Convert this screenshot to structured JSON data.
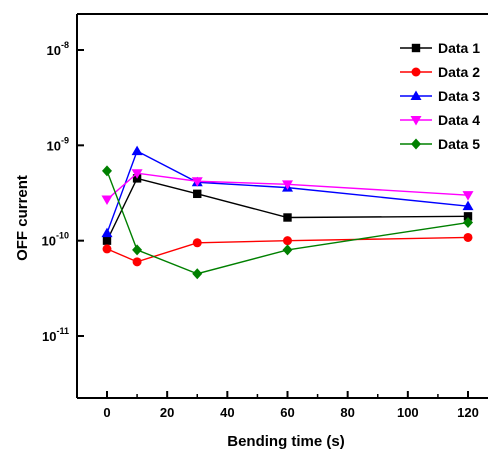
{
  "chart_data": {
    "type": "line",
    "xlabel": "Bending time (s)",
    "ylabel": "OFF current",
    "yscale": "log",
    "xlim": [
      -8,
      125
    ],
    "ylim": [
      2.5e-12,
      3e-08
    ],
    "x_ticks": [
      {
        "value": 0,
        "label": "0"
      },
      {
        "value": 20,
        "label": "20"
      },
      {
        "value": 40,
        "label": "40"
      },
      {
        "value": 60,
        "label": "60"
      },
      {
        "value": 80,
        "label": "80"
      },
      {
        "value": 100,
        "label": "100"
      },
      {
        "value": 120,
        "label": "120"
      }
    ],
    "y_ticks": [
      {
        "value": 1e-11,
        "base": "10",
        "exp": "-11"
      },
      {
        "value": 1e-10,
        "base": "10",
        "exp": "-10"
      },
      {
        "value": 1e-09,
        "base": "10",
        "exp": "-9"
      },
      {
        "value": 1e-08,
        "base": "10",
        "exp": "-8"
      }
    ],
    "grid": false,
    "legend_position": "top-right",
    "x": [
      0,
      10,
      30,
      60,
      120
    ],
    "series": [
      {
        "name": "Data 1",
        "color": "#000000",
        "marker": "square",
        "values": [
          1e-10,
          4.5e-10,
          3.1e-10,
          1.75e-10,
          1.8e-10
        ]
      },
      {
        "name": "Data 2",
        "color": "#ff0000",
        "marker": "circle",
        "values": [
          8.2e-11,
          6e-11,
          9.5e-11,
          1e-10,
          1.08e-10
        ]
      },
      {
        "name": "Data 3",
        "color": "#0000ff",
        "marker": "triangle-up",
        "values": [
          1.2e-10,
          8.7e-10,
          4.1e-10,
          3.6e-10,
          2.3e-10
        ]
      },
      {
        "name": "Data 4",
        "color": "#ff00ff",
        "marker": "triangle-down",
        "values": [
          2.7e-10,
          5.1e-10,
          4.2e-10,
          3.9e-10,
          3e-10
        ]
      },
      {
        "name": "Data 5",
        "color": "#008000",
        "marker": "diamond",
        "values": [
          5.4e-10,
          8e-11,
          4.5e-11,
          8e-11,
          1.55e-10
        ]
      }
    ]
  }
}
